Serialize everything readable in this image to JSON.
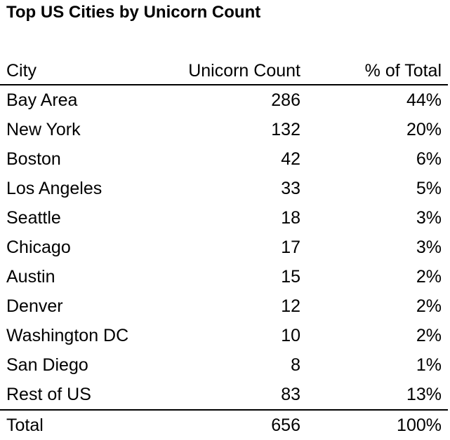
{
  "title": "Top US Cities by Unicorn Count",
  "chart_data": {
    "type": "table",
    "title": "Top US Cities by Unicorn Count",
    "columns": [
      "City",
      "Unicorn Count",
      "% of Total"
    ],
    "rows": [
      {
        "city": "Bay Area",
        "count": "286",
        "pct": "44%"
      },
      {
        "city": "New York",
        "count": "132",
        "pct": "20%"
      },
      {
        "city": "Boston",
        "count": "42",
        "pct": "6%"
      },
      {
        "city": "Los Angeles",
        "count": "33",
        "pct": "5%"
      },
      {
        "city": "Seattle",
        "count": "18",
        "pct": "3%"
      },
      {
        "city": "Chicago",
        "count": "17",
        "pct": "3%"
      },
      {
        "city": "Austin",
        "count": "15",
        "pct": "2%"
      },
      {
        "city": "Denver",
        "count": "12",
        "pct": "2%"
      },
      {
        "city": "Washington DC",
        "count": "10",
        "pct": "2%"
      },
      {
        "city": "San Diego",
        "count": "8",
        "pct": "1%"
      },
      {
        "city": "Rest of US",
        "count": "83",
        "pct": "13%"
      }
    ],
    "total": {
      "city": "Total",
      "count": "656",
      "pct": "100%"
    }
  }
}
